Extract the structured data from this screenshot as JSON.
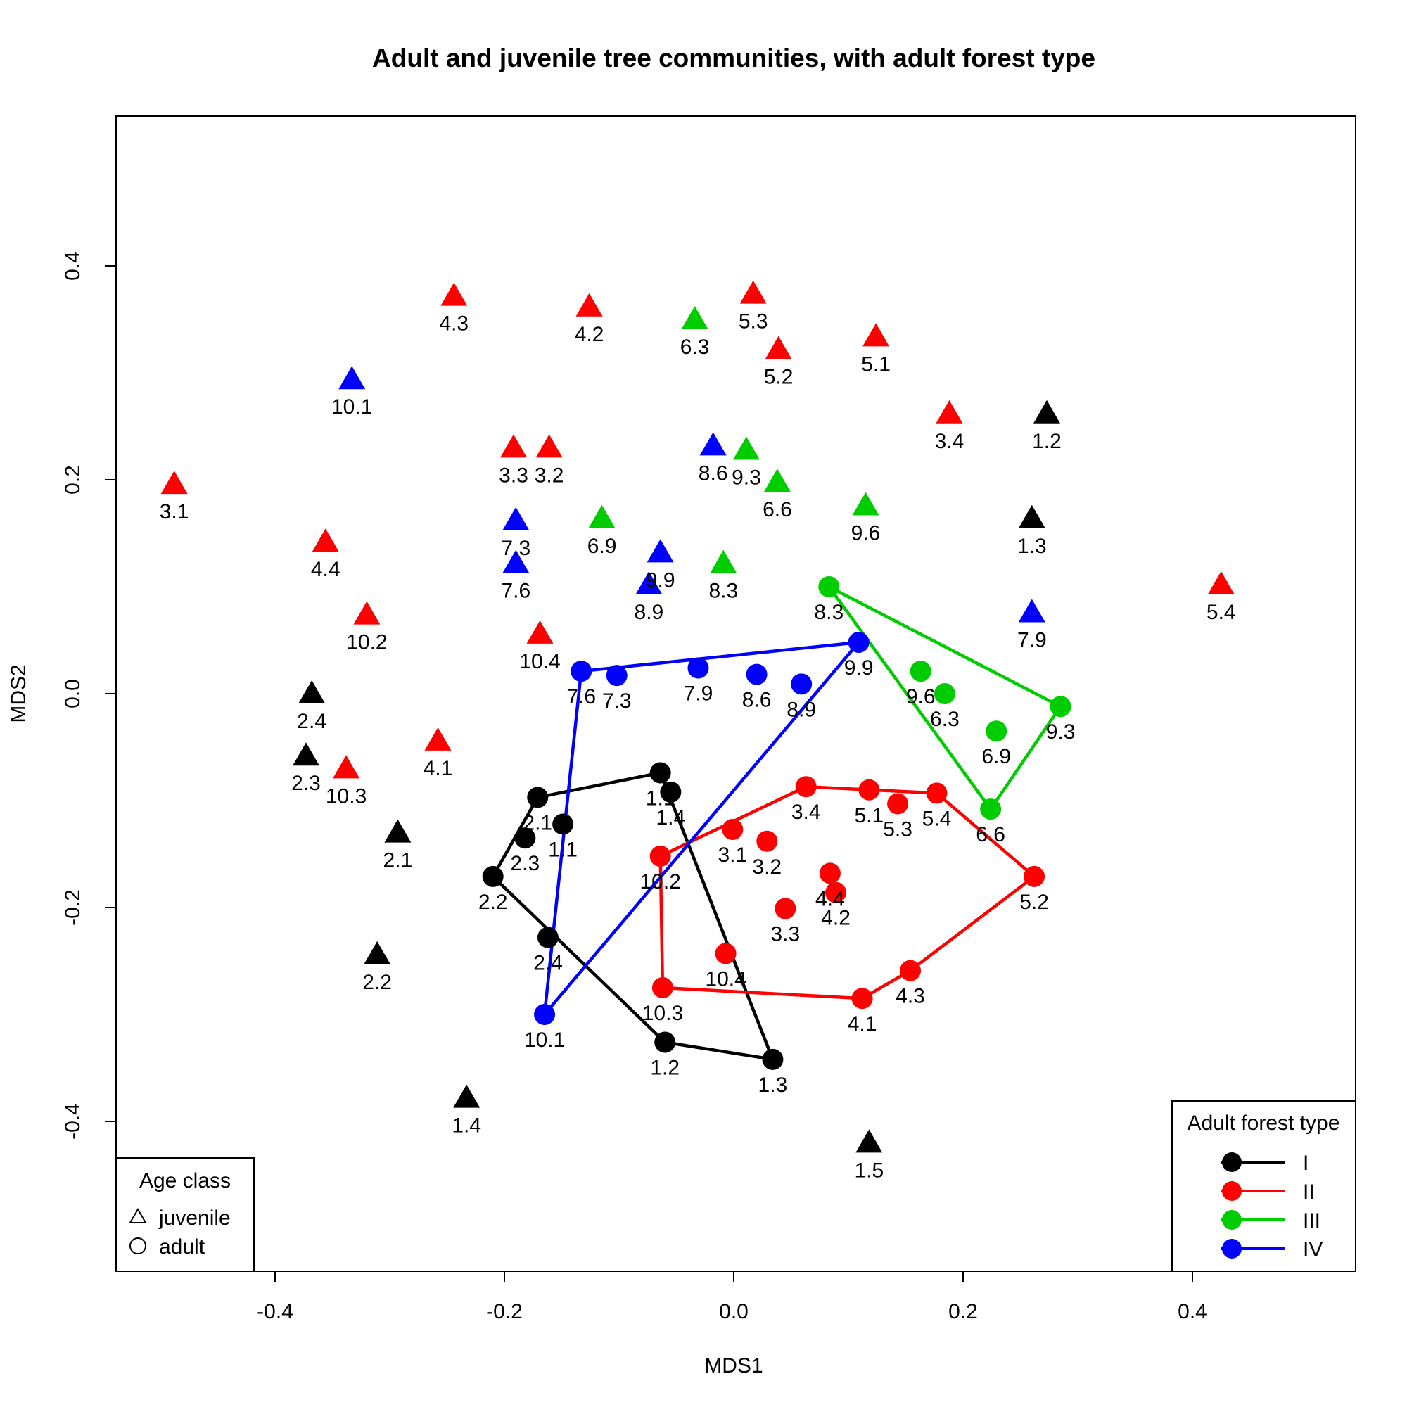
{
  "chart_data": {
    "type": "scatter",
    "title": "Adult and juvenile tree communities, with adult forest type",
    "xlabel": "MDS1",
    "ylabel": "MDS2",
    "xlim": [
      -0.54,
      0.54
    ],
    "ylim": [
      -0.54,
      0.54
    ],
    "xticks": [
      "-0.4",
      "-0.2",
      "0.0",
      "0.2",
      "0.4"
    ],
    "yticks": [
      "-0.4",
      "-0.2",
      "0.0",
      "0.2",
      "0.4"
    ],
    "colors": {
      "I": "#000000",
      "II": "#ff0000",
      "III": "#00cd00",
      "IV": "#0000ff"
    },
    "juveniles": [
      {
        "label": "4.3",
        "x": -0.244,
        "y": 0.37,
        "type": "II"
      },
      {
        "label": "4.2",
        "x": -0.126,
        "y": 0.36,
        "type": "II"
      },
      {
        "label": "5.3",
        "x": 0.017,
        "y": 0.372,
        "type": "II"
      },
      {
        "label": "6.3",
        "x": -0.034,
        "y": 0.348,
        "type": "III"
      },
      {
        "label": "5.2",
        "x": 0.039,
        "y": 0.32,
        "type": "II"
      },
      {
        "label": "5.1",
        "x": 0.124,
        "y": 0.332,
        "type": "II"
      },
      {
        "label": "10.1",
        "x": -0.333,
        "y": 0.292,
        "type": "IV"
      },
      {
        "label": "3.4",
        "x": 0.188,
        "y": 0.26,
        "type": "II"
      },
      {
        "label": "1.2",
        "x": 0.273,
        "y": 0.26,
        "type": "I"
      },
      {
        "label": "3.3",
        "x": -0.192,
        "y": 0.228,
        "type": "II"
      },
      {
        "label": "3.2",
        "x": -0.161,
        "y": 0.228,
        "type": "II"
      },
      {
        "label": "8.6",
        "x": -0.018,
        "y": 0.23,
        "type": "IV"
      },
      {
        "label": "9.3",
        "x": 0.011,
        "y": 0.226,
        "type": "III"
      },
      {
        "label": "6.6",
        "x": 0.038,
        "y": 0.196,
        "type": "III"
      },
      {
        "label": "3.1",
        "x": -0.488,
        "y": 0.194,
        "type": "II"
      },
      {
        "label": "9.6",
        "x": 0.115,
        "y": 0.174,
        "type": "III"
      },
      {
        "label": "7.3",
        "x": -0.19,
        "y": 0.16,
        "type": "IV"
      },
      {
        "label": "6.9",
        "x": -0.115,
        "y": 0.162,
        "type": "III"
      },
      {
        "label": "1.3",
        "x": 0.26,
        "y": 0.162,
        "type": "I"
      },
      {
        "label": "4.4",
        "x": -0.356,
        "y": 0.14,
        "type": "II"
      },
      {
        "label": "9.9",
        "x": -0.064,
        "y": 0.13,
        "type": "IV"
      },
      {
        "label": "7.6",
        "x": -0.19,
        "y": 0.12,
        "type": "IV"
      },
      {
        "label": "8.3",
        "x": -0.009,
        "y": 0.12,
        "type": "III"
      },
      {
        "label": "8.9",
        "x": -0.074,
        "y": 0.1,
        "type": "IV"
      },
      {
        "label": "5.4",
        "x": 0.425,
        "y": 0.1,
        "type": "II"
      },
      {
        "label": "10.2",
        "x": -0.32,
        "y": 0.072,
        "type": "II"
      },
      {
        "label": "7.9",
        "x": 0.26,
        "y": 0.074,
        "type": "IV"
      },
      {
        "label": "10.4",
        "x": -0.169,
        "y": 0.054,
        "type": "II"
      },
      {
        "label": "2.4",
        "x": -0.368,
        "y": -0.002,
        "type": "I"
      },
      {
        "label": "4.1",
        "x": -0.258,
        "y": -0.046,
        "type": "II"
      },
      {
        "label": "2.3",
        "x": -0.373,
        "y": -0.06,
        "type": "I"
      },
      {
        "label": "10.3",
        "x": -0.338,
        "y": -0.072,
        "type": "II"
      },
      {
        "label": "2.1",
        "x": -0.293,
        "y": -0.132,
        "type": "I"
      },
      {
        "label": "2.2",
        "x": -0.311,
        "y": -0.246,
        "type": "I"
      },
      {
        "label": "1.4",
        "x": -0.233,
        "y": -0.38,
        "type": "I"
      },
      {
        "label": "1.5",
        "x": 0.118,
        "y": -0.422,
        "type": "I"
      }
    ],
    "adults": [
      {
        "label": "1.1",
        "x": -0.064,
        "y": -0.074,
        "type": "I"
      },
      {
        "label": "1.4",
        "x": -0.055,
        "y": -0.092,
        "type": "I"
      },
      {
        "label": "2.1",
        "x": -0.171,
        "y": -0.097,
        "type": "I"
      },
      {
        "label": "1.1",
        "x": -0.149,
        "y": -0.122,
        "type": "I"
      },
      {
        "label": "2.3",
        "x": -0.182,
        "y": -0.135,
        "type": "I"
      },
      {
        "label": "2.2",
        "x": -0.21,
        "y": -0.171,
        "type": "I"
      },
      {
        "label": "2.4",
        "x": -0.162,
        "y": -0.228,
        "type": "I"
      },
      {
        "label": "1.2",
        "x": -0.06,
        "y": -0.326,
        "type": "I"
      },
      {
        "label": "1.3",
        "x": 0.034,
        "y": -0.342,
        "type": "I"
      },
      {
        "label": "3.4",
        "x": 0.063,
        "y": -0.087,
        "type": "II"
      },
      {
        "label": "5.1",
        "x": 0.118,
        "y": -0.09,
        "type": "II"
      },
      {
        "label": "5.3",
        "x": 0.143,
        "y": -0.103,
        "type": "II"
      },
      {
        "label": "5.4",
        "x": 0.177,
        "y": -0.093,
        "type": "II"
      },
      {
        "label": "3.1",
        "x": -0.001,
        "y": -0.127,
        "type": "II"
      },
      {
        "label": "3.2",
        "x": 0.029,
        "y": -0.138,
        "type": "II"
      },
      {
        "label": "10.2",
        "x": -0.064,
        "y": -0.152,
        "type": "II"
      },
      {
        "label": "5.2",
        "x": 0.262,
        "y": -0.171,
        "type": "II"
      },
      {
        "label": "4.4",
        "x": 0.084,
        "y": -0.168,
        "type": "II"
      },
      {
        "label": "4.2",
        "x": 0.089,
        "y": -0.186,
        "type": "II"
      },
      {
        "label": "3.3",
        "x": 0.045,
        "y": -0.201,
        "type": "II"
      },
      {
        "label": "10.4",
        "x": -0.007,
        "y": -0.243,
        "type": "II"
      },
      {
        "label": "10.3",
        "x": -0.062,
        "y": -0.275,
        "type": "II"
      },
      {
        "label": "4.3",
        "x": 0.154,
        "y": -0.259,
        "type": "II"
      },
      {
        "label": "4.1",
        "x": 0.112,
        "y": -0.285,
        "type": "II"
      },
      {
        "label": "8.3",
        "x": 0.083,
        "y": 0.1,
        "type": "III"
      },
      {
        "label": "9.6",
        "x": 0.163,
        "y": 0.021,
        "type": "III"
      },
      {
        "label": "6.3",
        "x": 0.184,
        "y": 0.0,
        "type": "III"
      },
      {
        "label": "9.3",
        "x": 0.285,
        "y": -0.012,
        "type": "III"
      },
      {
        "label": "6.9",
        "x": 0.229,
        "y": -0.035,
        "type": "III"
      },
      {
        "label": "6.6",
        "x": 0.224,
        "y": -0.108,
        "type": "III"
      },
      {
        "label": "9.9",
        "x": 0.109,
        "y": 0.048,
        "type": "IV"
      },
      {
        "label": "7.6",
        "x": -0.133,
        "y": 0.021,
        "type": "IV"
      },
      {
        "label": "7.3",
        "x": -0.102,
        "y": 0.017,
        "type": "IV"
      },
      {
        "label": "7.9",
        "x": -0.031,
        "y": 0.024,
        "type": "IV"
      },
      {
        "label": "8.6",
        "x": 0.02,
        "y": 0.018,
        "type": "IV"
      },
      {
        "label": "8.9",
        "x": 0.059,
        "y": 0.009,
        "type": "IV"
      },
      {
        "label": "10.1",
        "x": -0.165,
        "y": -0.3,
        "type": "IV"
      }
    ],
    "hulls": [
      {
        "type": "I",
        "points": [
          [
            -0.064,
            -0.074
          ],
          [
            -0.171,
            -0.097
          ],
          [
            -0.21,
            -0.171
          ],
          [
            -0.06,
            -0.326
          ],
          [
            0.034,
            -0.342
          ],
          [
            -0.064,
            -0.074
          ]
        ]
      },
      {
        "type": "II",
        "points": [
          [
            0.063,
            -0.087
          ],
          [
            0.177,
            -0.093
          ],
          [
            0.262,
            -0.171
          ],
          [
            0.154,
            -0.259
          ],
          [
            0.112,
            -0.285
          ],
          [
            -0.062,
            -0.275
          ],
          [
            -0.064,
            -0.152
          ],
          [
            0.063,
            -0.087
          ]
        ]
      },
      {
        "type": "III",
        "points": [
          [
            0.083,
            0.1
          ],
          [
            0.285,
            -0.012
          ],
          [
            0.224,
            -0.108
          ],
          [
            0.083,
            0.1
          ]
        ]
      },
      {
        "type": "IV",
        "points": [
          [
            -0.133,
            0.021
          ],
          [
            0.109,
            0.048
          ],
          [
            -0.165,
            -0.3
          ],
          [
            -0.133,
            0.021
          ]
        ]
      }
    ],
    "legend_age": {
      "title": "Age class",
      "items": [
        {
          "label": "juvenile",
          "shape": "triangle"
        },
        {
          "label": "adult",
          "shape": "circle"
        }
      ],
      "placement": "bottom-left"
    },
    "legend_type": {
      "title": "Adult forest type",
      "items": [
        "I",
        "II",
        "III",
        "IV"
      ],
      "placement": "bottom-right"
    }
  }
}
